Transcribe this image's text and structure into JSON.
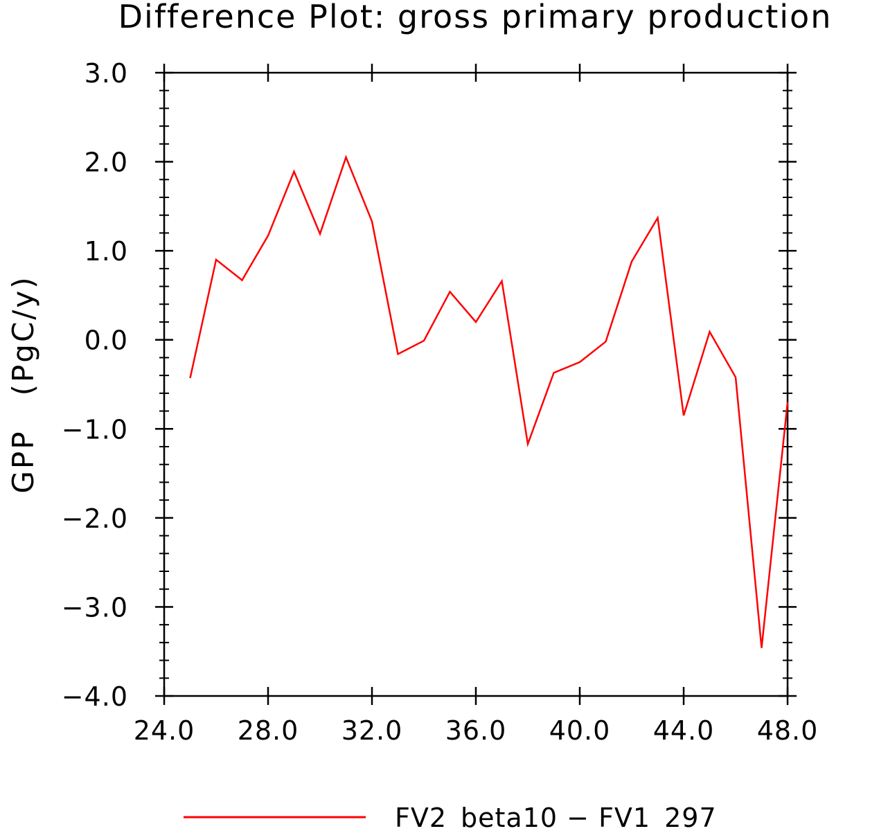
{
  "chart_data": {
    "type": "line",
    "title": "Difference Plot: gross primary production",
    "xlabel": "",
    "ylabel": "GPP   (PgC/y)",
    "xlim": [
      24,
      48
    ],
    "ylim": [
      -4,
      3
    ],
    "x_ticks": [
      24,
      28,
      32,
      36,
      40,
      44,
      48
    ],
    "x_tick_labels": [
      "24.0",
      "28.0",
      "32.0",
      "36.0",
      "40.0",
      "44.0",
      "48.0"
    ],
    "y_ticks": [
      -4,
      -3,
      -2,
      -1,
      0,
      1,
      2,
      3
    ],
    "y_tick_labels": [
      "−4.0",
      "−3.0",
      "−2.0",
      "−1.0",
      "0.0",
      "1.0",
      "2.0",
      "3.0"
    ],
    "grid": false,
    "legend_position": "bottom",
    "series": [
      {
        "name": "FV2_beta10 − FV1_297",
        "color": "#ff0000",
        "x": [
          25,
          26,
          27,
          28,
          29,
          30,
          31,
          32,
          33,
          34,
          35,
          36,
          37,
          38,
          39,
          40,
          41,
          42,
          43,
          44,
          45,
          46,
          47,
          48
        ],
        "y": [
          -0.43,
          0.9,
          0.67,
          1.17,
          1.89,
          1.19,
          2.05,
          1.33,
          -0.16,
          -0.01,
          0.54,
          0.2,
          0.66,
          -1.17,
          -0.37,
          -0.25,
          -0.02,
          0.88,
          1.37,
          -0.85,
          0.09,
          -0.42,
          -3.46,
          -0.7
        ]
      }
    ]
  }
}
